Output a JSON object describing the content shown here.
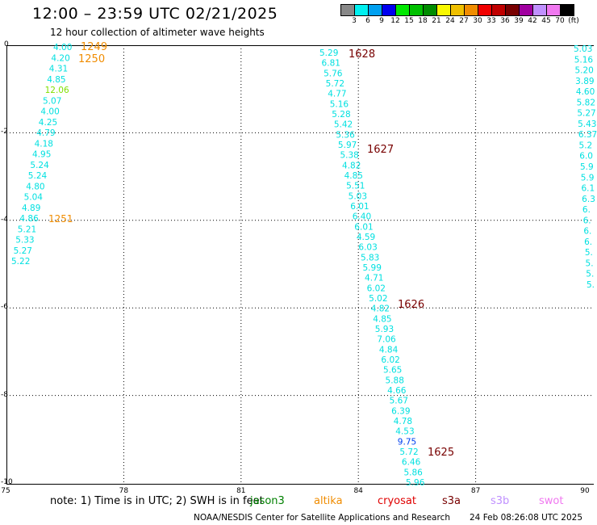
{
  "title": "12:00 – 23:59 UTC 02/21/2025",
  "subtitle": "12 hour collection of altimeter wave heights",
  "colorbar": {
    "colors": [
      "#888888",
      "#00f0f0",
      "#00a0f0",
      "#0000f0",
      "#00e800",
      "#00c000",
      "#008c00",
      "#f8f800",
      "#f0c000",
      "#f08c00",
      "#f00000",
      "#c00000",
      "#780000",
      "#a000a0",
      "#c090ff",
      "#f078f0",
      "#000000"
    ],
    "labels": [
      "3",
      "6",
      "9",
      "12",
      "15",
      "18",
      "21",
      "24",
      "27",
      "30",
      "33",
      "36",
      "39",
      "42",
      "45",
      "70"
    ],
    "unit": "(ft)"
  },
  "map": {
    "lon_ticks": [
      "75",
      "78",
      "81",
      "84",
      "87",
      "90"
    ],
    "lat_ticks": [
      "0",
      "-2",
      "-4",
      "-6",
      "-8",
      "-10"
    ]
  },
  "tracks": [
    {
      "points": [
        {
          "v": "4.00",
          "c": "#00e0e0"
        },
        {
          "v": "4.20",
          "c": "#00e0e0"
        },
        {
          "v": "4.31",
          "c": "#00e0e0"
        },
        {
          "v": "4.85",
          "c": "#00e0e0"
        },
        {
          "v": "12.06",
          "c": "#80e000"
        },
        {
          "v": "5.07",
          "c": "#00e0e0"
        },
        {
          "v": "4.00",
          "c": "#00e0e0"
        },
        {
          "v": "4.25",
          "c": "#00e0e0"
        },
        {
          "v": "4.79",
          "c": "#00e0e0"
        },
        {
          "v": "4.18",
          "c": "#00e0e0"
        },
        {
          "v": "4.95",
          "c": "#00e0e0"
        },
        {
          "v": "5.24",
          "c": "#00e0e0"
        },
        {
          "v": "5.24",
          "c": "#00e0e0"
        },
        {
          "v": "4.80",
          "c": "#00e0e0"
        },
        {
          "v": "5.04",
          "c": "#00e0e0"
        },
        {
          "v": "4.89",
          "c": "#00e0e0"
        },
        {
          "v": "4.86",
          "c": "#00e0e0"
        },
        {
          "v": "5.21",
          "c": "#00e0e0"
        },
        {
          "v": "5.33",
          "c": "#00e0e0"
        },
        {
          "v": "5.27",
          "c": "#00e0e0"
        },
        {
          "v": "5.22",
          "c": "#00e0e0"
        }
      ]
    },
    {
      "points": [
        {
          "v": "5.29",
          "c": "#00e0e0"
        },
        {
          "v": "6.81",
          "c": "#00e0e0"
        },
        {
          "v": "5.76",
          "c": "#00e0e0"
        },
        {
          "v": "5.72",
          "c": "#00e0e0"
        },
        {
          "v": "4.77",
          "c": "#00e0e0"
        },
        {
          "v": "5.16",
          "c": "#00e0e0"
        },
        {
          "v": "5.28",
          "c": "#00e0e0"
        },
        {
          "v": "5.42",
          "c": "#00e0e0"
        },
        {
          "v": "5.36",
          "c": "#00e0e0"
        },
        {
          "v": "5.97",
          "c": "#00e0e0"
        },
        {
          "v": "5.38",
          "c": "#00e0e0"
        },
        {
          "v": "4.82",
          "c": "#00e0e0"
        },
        {
          "v": "4.85",
          "c": "#00e0e0"
        },
        {
          "v": "5.51",
          "c": "#00e0e0"
        },
        {
          "v": "5.03",
          "c": "#00e0e0"
        },
        {
          "v": "6.01",
          "c": "#00e0e0"
        },
        {
          "v": "6.40",
          "c": "#00e0e0"
        },
        {
          "v": "6.01",
          "c": "#00e0e0"
        },
        {
          "v": "4.59",
          "c": "#00e0e0"
        },
        {
          "v": "6.03",
          "c": "#00e0e0"
        },
        {
          "v": "5.83",
          "c": "#00e0e0"
        },
        {
          "v": "5.99",
          "c": "#00e0e0"
        },
        {
          "v": "4.71",
          "c": "#00e0e0"
        },
        {
          "v": "6.02",
          "c": "#00e0e0"
        },
        {
          "v": "5.02",
          "c": "#00e0e0"
        },
        {
          "v": "4.82",
          "c": "#00e0e0"
        },
        {
          "v": "4.85",
          "c": "#00e0e0"
        },
        {
          "v": "5.93",
          "c": "#00e0e0"
        },
        {
          "v": "7.06",
          "c": "#00e0e0"
        },
        {
          "v": "4.84",
          "c": "#00e0e0"
        },
        {
          "v": "6.02",
          "c": "#00e0e0"
        },
        {
          "v": "5.65",
          "c": "#00e0e0"
        },
        {
          "v": "5.88",
          "c": "#00e0e0"
        },
        {
          "v": "4.66",
          "c": "#00e0e0"
        },
        {
          "v": "5.67",
          "c": "#00e0e0"
        },
        {
          "v": "6.39",
          "c": "#00e0e0"
        },
        {
          "v": "4.78",
          "c": "#00e0e0"
        },
        {
          "v": "4.53",
          "c": "#00e0e0"
        },
        {
          "v": "9.75",
          "c": "#0040f0"
        },
        {
          "v": "5.72",
          "c": "#00e0e0"
        },
        {
          "v": "6.46",
          "c": "#00e0e0"
        },
        {
          "v": "5.86",
          "c": "#00e0e0"
        },
        {
          "v": "5.96",
          "c": "#00e0e0"
        }
      ]
    },
    {
      "points": [
        {
          "v": "5.03",
          "c": "#00e0e0"
        },
        {
          "v": "5.16",
          "c": "#00e0e0"
        },
        {
          "v": "5.20",
          "c": "#00e0e0"
        },
        {
          "v": "3.89",
          "c": "#00e0e0"
        },
        {
          "v": "4.60",
          "c": "#00e0e0"
        },
        {
          "v": "5.82",
          "c": "#00e0e0"
        },
        {
          "v": "5.27",
          "c": "#00e0e0"
        },
        {
          "v": "5.43",
          "c": "#00e0e0"
        },
        {
          "v": "6.37",
          "c": "#00e0e0"
        },
        {
          "v": "5.2",
          "c": "#00e0e0"
        },
        {
          "v": "6.0",
          "c": "#00e0e0"
        },
        {
          "v": "5.9",
          "c": "#00e0e0"
        },
        {
          "v": "5.9",
          "c": "#00e0e0"
        },
        {
          "v": "6.1",
          "c": "#00e0e0"
        },
        {
          "v": "6.3",
          "c": "#00e0e0"
        },
        {
          "v": "6.",
          "c": "#00e0e0"
        },
        {
          "v": "6.",
          "c": "#00e0e0"
        },
        {
          "v": "6.",
          "c": "#00e0e0"
        },
        {
          "v": "6.",
          "c": "#00e0e0"
        },
        {
          "v": "5.",
          "c": "#00e0e0"
        },
        {
          "v": "5.",
          "c": "#00e0e0"
        },
        {
          "v": "5.",
          "c": "#00e0e0"
        },
        {
          "v": "5.",
          "c": "#00e0e0"
        }
      ]
    }
  ],
  "time_labels": [
    {
      "t": "1249",
      "c": "#f08c00"
    },
    {
      "t": "1250",
      "c": "#f08c00"
    },
    {
      "t": "1251",
      "c": "#f08c00"
    },
    {
      "t": "1628",
      "c": "#780000"
    },
    {
      "t": "1627",
      "c": "#780000"
    },
    {
      "t": "1626",
      "c": "#780000"
    },
    {
      "t": "1625",
      "c": "#780000"
    }
  ],
  "note": "note:  1) Time is in UTC; 2) SWH is in feet",
  "satellites": [
    {
      "name": "jason3",
      "color": "#008000"
    },
    {
      "name": "altika",
      "color": "#f08c00"
    },
    {
      "name": "cryosat",
      "color": "#e00000"
    },
    {
      "name": "s3a",
      "color": "#780000"
    },
    {
      "name": "s3b",
      "color": "#c090ff"
    },
    {
      "name": "swot",
      "color": "#f078f0"
    }
  ],
  "footer": "NOAA/NESDIS Center for Satellite Applications and Research",
  "footer_time": "24 Feb 08:26:08 UTC 2025"
}
